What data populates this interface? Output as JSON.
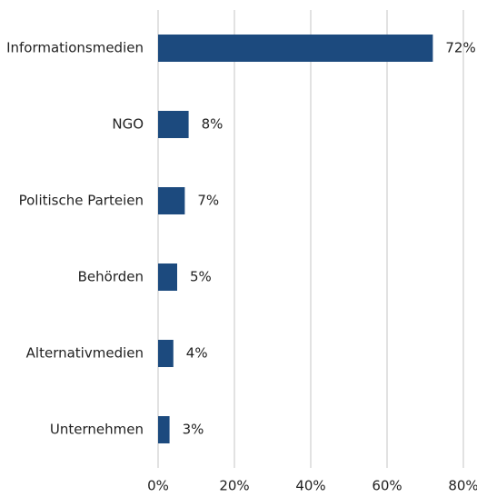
{
  "chart_data": {
    "type": "barh",
    "categories": [
      "Informationsmedien",
      "NGO",
      "Politische Parteien",
      "Behörden",
      "Alternativmedien",
      "Unternehmen"
    ],
    "values": [
      72,
      8,
      7,
      5,
      4,
      3
    ],
    "value_labels": [
      "72%",
      "8%",
      "7%",
      "5%",
      "4%",
      "3%"
    ],
    "color": "#1c4a7e",
    "xlim": [
      0,
      80
    ],
    "xticks": [
      {
        "value": 0,
        "label": "0%"
      },
      {
        "value": 20,
        "label": "20%"
      },
      {
        "value": 40,
        "label": "40%"
      },
      {
        "value": 60,
        "label": "60%"
      },
      {
        "value": 80,
        "label": "80%"
      }
    ],
    "grid": true
  }
}
